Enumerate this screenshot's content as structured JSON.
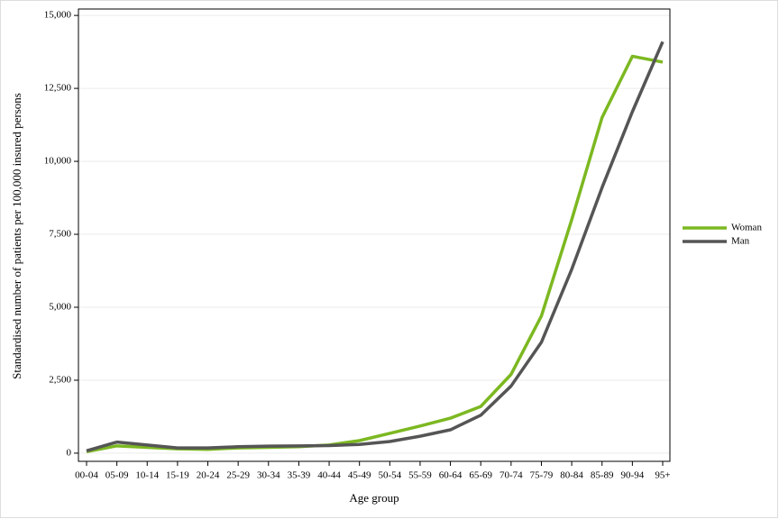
{
  "chart_data": {
    "type": "line",
    "x_label": "Age group",
    "y_label": "Standardised number of patients per 100,000 insured persons",
    "categories": [
      "00-04",
      "05-09",
      "10-14",
      "15-19",
      "20-24",
      "25-29",
      "30-34",
      "35-39",
      "40-44",
      "45-49",
      "50-54",
      "55-59",
      "60-64",
      "65-69",
      "70-74",
      "75-79",
      "80-84",
      "85-89",
      "90-94",
      "95+"
    ],
    "series": [
      {
        "name": "Woman",
        "color": "#7cb821",
        "values": [
          50,
          250,
          200,
          150,
          130,
          180,
          200,
          220,
          280,
          430,
          680,
          930,
          1200,
          1600,
          2700,
          4700,
          8000,
          11500,
          13600,
          13400
        ]
      },
      {
        "name": "Man",
        "color": "#555555",
        "values": [
          80,
          380,
          280,
          180,
          180,
          220,
          240,
          250,
          260,
          300,
          400,
          580,
          800,
          1300,
          2300,
          3800,
          6300,
          9100,
          11700,
          14100
        ]
      }
    ],
    "ylim": [
      -280,
      15220
    ],
    "yticks": [
      0,
      {
        "value": 2500,
        "label": "2,500"
      },
      {
        "value": 5000,
        "label": "5,000"
      },
      {
        "value": 7500,
        "label": "7,500"
      },
      {
        "value": 10000,
        "label": "10,000"
      },
      {
        "value": 12500,
        "label": "12,500"
      },
      {
        "value": 15000,
        "label": "15,000"
      }
    ],
    "grid": true,
    "legend": "right"
  }
}
